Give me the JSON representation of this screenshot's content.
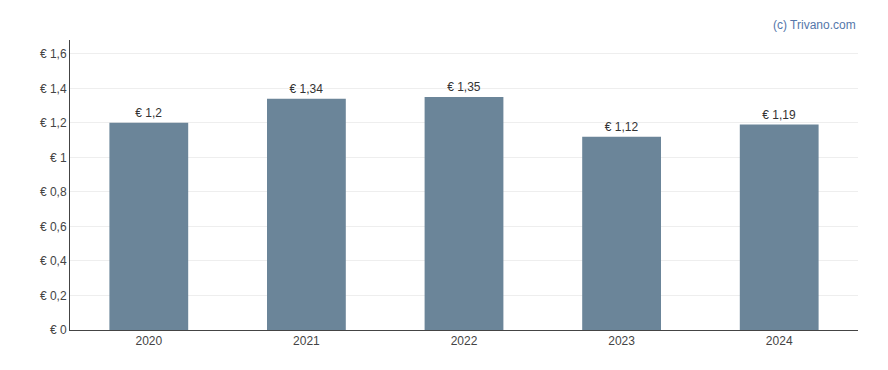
{
  "chart_data": {
    "type": "bar",
    "categories": [
      "2020",
      "2021",
      "2022",
      "2023",
      "2024"
    ],
    "values": [
      1.2,
      1.34,
      1.35,
      1.12,
      1.19
    ],
    "value_labels": [
      "€ 1,2",
      "€ 1,34",
      "€ 1,35",
      "€ 1,12",
      "€ 1,19"
    ],
    "data_labels": true,
    "color": "#6b8599",
    "ylim": [
      0,
      1.68
    ],
    "yticks": [
      {
        "value": 0,
        "label": "€ 0"
      },
      {
        "value": 0.2,
        "label": "€ 0,2"
      },
      {
        "value": 0.4,
        "label": "€ 0,4"
      },
      {
        "value": 0.6,
        "label": "€ 0,6"
      },
      {
        "value": 0.8,
        "label": "€ 0,8"
      },
      {
        "value": 1.0,
        "label": "€ 1"
      },
      {
        "value": 1.2,
        "label": "€ 1,2"
      },
      {
        "value": 1.4,
        "label": "€ 1,4"
      },
      {
        "value": 1.6,
        "label": "€ 1,6"
      }
    ],
    "grid": true,
    "annotations": [
      "(c) Trivano.com"
    ]
  }
}
